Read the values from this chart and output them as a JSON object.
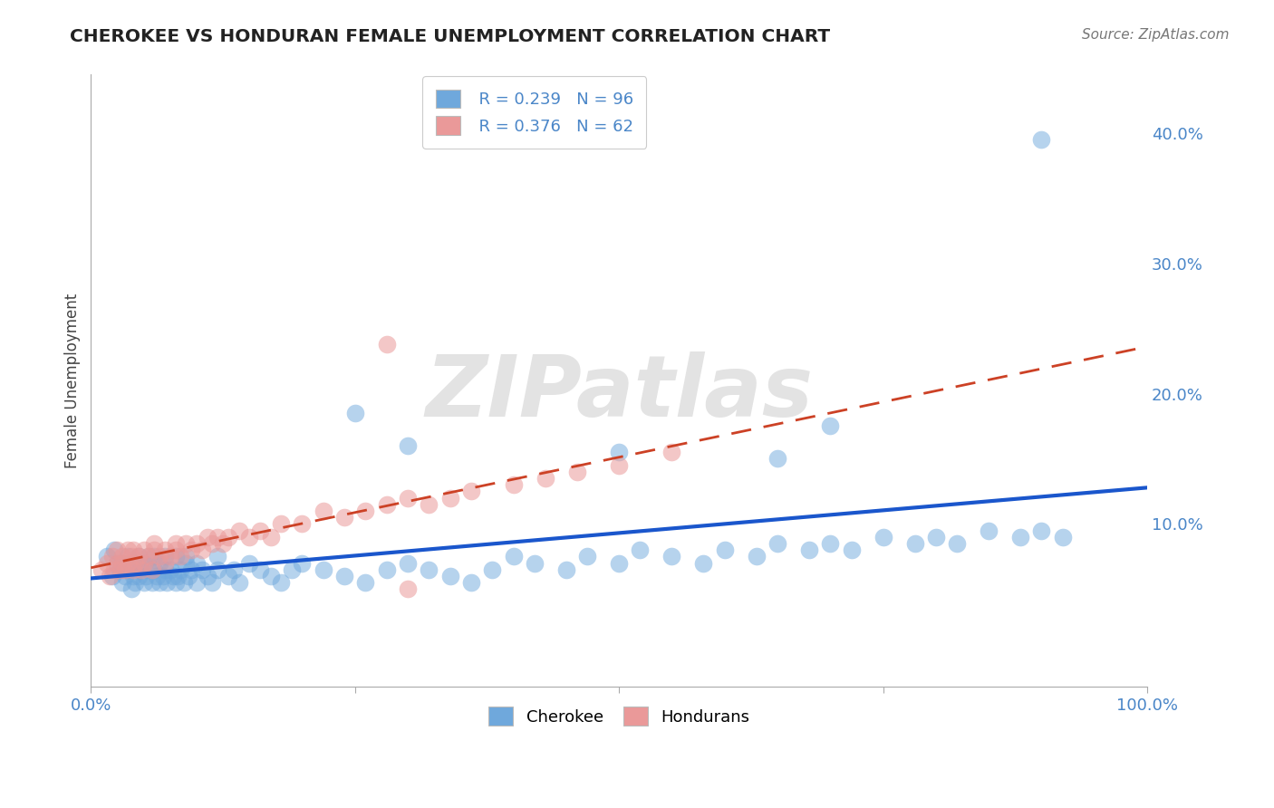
{
  "title": "CHEROKEE VS HONDURAN FEMALE UNEMPLOYMENT CORRELATION CHART",
  "source": "Source: ZipAtlas.com",
  "ylabel": "Female Unemployment",
  "cherokee_R": 0.239,
  "cherokee_N": 96,
  "honduran_R": 0.376,
  "honduran_N": 62,
  "cherokee_color": "#6fa8dc",
  "honduran_color": "#ea9999",
  "cherokee_line_color": "#1a56cc",
  "honduran_line_color": "#cc4125",
  "grid_color": "#bbbbbb",
  "background_color": "#ffffff",
  "title_color": "#222222",
  "axis_label_color": "#4a86c8",
  "legend_R_color": "#4a86c8",
  "legend_N_color": "#cc0000",
  "xlim": [
    0.0,
    1.0
  ],
  "ylim": [
    -0.025,
    0.445
  ],
  "ytick_vals": [
    0.1,
    0.2,
    0.3,
    0.4
  ],
  "ytick_labels": [
    "10.0%",
    "20.0%",
    "30.0%",
    "40.0%"
  ],
  "xtick_vals": [
    0.0,
    0.25,
    0.5,
    0.75,
    1.0
  ],
  "xtick_labels": [
    "0.0%",
    "",
    "",
    "",
    "100.0%"
  ],
  "cherokee_x": [
    0.015,
    0.02,
    0.022,
    0.025,
    0.027,
    0.03,
    0.03,
    0.032,
    0.035,
    0.035,
    0.038,
    0.04,
    0.04,
    0.042,
    0.045,
    0.045,
    0.047,
    0.05,
    0.05,
    0.052,
    0.055,
    0.055,
    0.058,
    0.06,
    0.06,
    0.062,
    0.065,
    0.065,
    0.068,
    0.07,
    0.07,
    0.072,
    0.075,
    0.078,
    0.08,
    0.08,
    0.082,
    0.085,
    0.088,
    0.09,
    0.09,
    0.092,
    0.095,
    0.1,
    0.1,
    0.105,
    0.11,
    0.115,
    0.12,
    0.12,
    0.13,
    0.135,
    0.14,
    0.15,
    0.16,
    0.17,
    0.18,
    0.19,
    0.2,
    0.22,
    0.24,
    0.26,
    0.28,
    0.3,
    0.32,
    0.34,
    0.36,
    0.38,
    0.4,
    0.42,
    0.45,
    0.47,
    0.5,
    0.52,
    0.55,
    0.58,
    0.6,
    0.63,
    0.65,
    0.68,
    0.7,
    0.72,
    0.75,
    0.78,
    0.8,
    0.82,
    0.85,
    0.88,
    0.9,
    0.92,
    0.25,
    0.3,
    0.65,
    0.7,
    0.9,
    0.5
  ],
  "cherokee_y": [
    0.075,
    0.06,
    0.08,
    0.07,
    0.065,
    0.055,
    0.07,
    0.06,
    0.065,
    0.075,
    0.05,
    0.06,
    0.07,
    0.055,
    0.06,
    0.075,
    0.065,
    0.055,
    0.07,
    0.06,
    0.065,
    0.075,
    0.055,
    0.065,
    0.075,
    0.06,
    0.055,
    0.07,
    0.06,
    0.065,
    0.075,
    0.055,
    0.065,
    0.06,
    0.055,
    0.075,
    0.06,
    0.065,
    0.055,
    0.07,
    0.075,
    0.06,
    0.065,
    0.055,
    0.07,
    0.065,
    0.06,
    0.055,
    0.065,
    0.075,
    0.06,
    0.065,
    0.055,
    0.07,
    0.065,
    0.06,
    0.055,
    0.065,
    0.07,
    0.065,
    0.06,
    0.055,
    0.065,
    0.07,
    0.065,
    0.06,
    0.055,
    0.065,
    0.075,
    0.07,
    0.065,
    0.075,
    0.07,
    0.08,
    0.075,
    0.07,
    0.08,
    0.075,
    0.085,
    0.08,
    0.085,
    0.08,
    0.09,
    0.085,
    0.09,
    0.085,
    0.095,
    0.09,
    0.095,
    0.09,
    0.185,
    0.16,
    0.15,
    0.175,
    0.395,
    0.155
  ],
  "honduran_x": [
    0.01,
    0.015,
    0.018,
    0.02,
    0.022,
    0.025,
    0.025,
    0.028,
    0.03,
    0.03,
    0.032,
    0.035,
    0.035,
    0.038,
    0.04,
    0.04,
    0.042,
    0.045,
    0.048,
    0.05,
    0.05,
    0.055,
    0.058,
    0.06,
    0.06,
    0.065,
    0.07,
    0.07,
    0.075,
    0.08,
    0.08,
    0.085,
    0.09,
    0.095,
    0.1,
    0.105,
    0.11,
    0.115,
    0.12,
    0.125,
    0.13,
    0.14,
    0.15,
    0.16,
    0.17,
    0.18,
    0.2,
    0.22,
    0.24,
    0.26,
    0.28,
    0.3,
    0.32,
    0.34,
    0.36,
    0.4,
    0.43,
    0.46,
    0.5,
    0.55,
    0.28,
    0.3
  ],
  "honduran_y": [
    0.065,
    0.07,
    0.06,
    0.075,
    0.065,
    0.07,
    0.08,
    0.065,
    0.07,
    0.075,
    0.065,
    0.08,
    0.07,
    0.075,
    0.065,
    0.08,
    0.07,
    0.075,
    0.065,
    0.07,
    0.08,
    0.075,
    0.065,
    0.08,
    0.085,
    0.075,
    0.07,
    0.08,
    0.075,
    0.08,
    0.085,
    0.075,
    0.085,
    0.08,
    0.085,
    0.08,
    0.09,
    0.085,
    0.09,
    0.085,
    0.09,
    0.095,
    0.09,
    0.095,
    0.09,
    0.1,
    0.1,
    0.11,
    0.105,
    0.11,
    0.115,
    0.12,
    0.115,
    0.12,
    0.125,
    0.13,
    0.135,
    0.14,
    0.145,
    0.155,
    0.238,
    0.05
  ]
}
